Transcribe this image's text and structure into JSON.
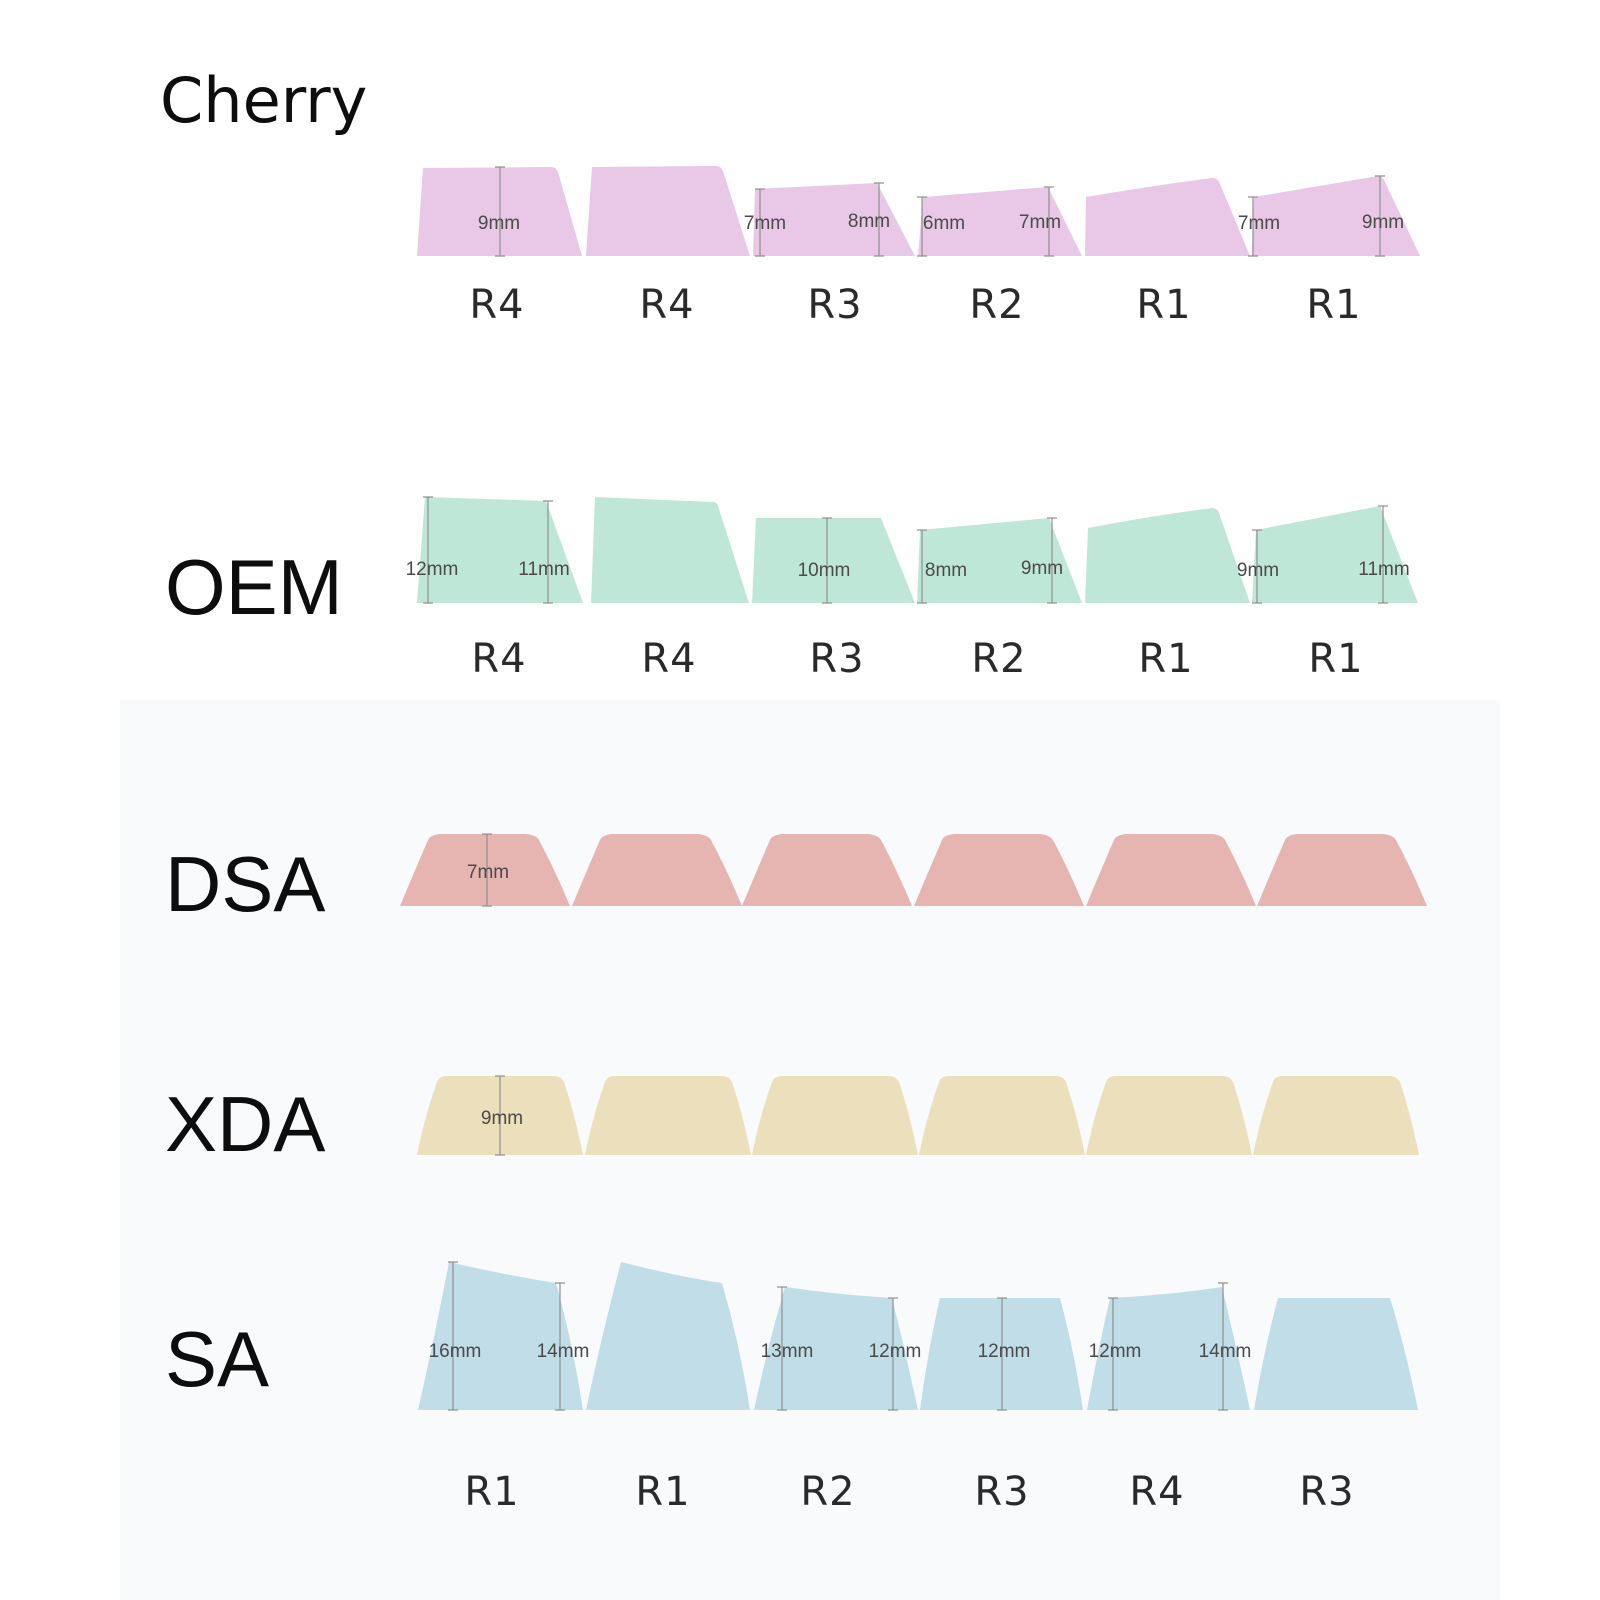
{
  "colors": {
    "cherry": "#e8c8e6",
    "oem": "#bfe7d7",
    "dsa": "#e7b5b1",
    "xda": "#ecdfbc",
    "sa": "#c0dde8",
    "text": "#0d0d0d"
  },
  "profiles": [
    {
      "key": "cherry",
      "title": "Cherry",
      "rows": [
        "R4",
        "R4",
        "R3",
        "R2",
        "R1",
        "R1"
      ],
      "measurements": [
        "9mm",
        "7mm",
        "8mm",
        "6mm",
        "7mm",
        "7mm",
        "9mm"
      ]
    },
    {
      "key": "oem",
      "title": "OEM",
      "rows": [
        "R4",
        "R4",
        "R3",
        "R2",
        "R1",
        "R1"
      ],
      "measurements": [
        "12mm",
        "11mm",
        "10mm",
        "8mm",
        "9mm",
        "9mm",
        "11mm"
      ]
    },
    {
      "key": "dsa",
      "title": "DSA",
      "measurements": [
        "7mm"
      ]
    },
    {
      "key": "xda",
      "title": "XDA",
      "measurements": [
        "9mm"
      ]
    },
    {
      "key": "sa",
      "title": "SA",
      "rows": [
        "R1",
        "R1",
        "R2",
        "R3",
        "R4",
        "R3"
      ],
      "measurements": [
        "16mm",
        "14mm",
        "13mm",
        "12mm",
        "12mm",
        "12mm",
        "14mm"
      ]
    }
  ]
}
